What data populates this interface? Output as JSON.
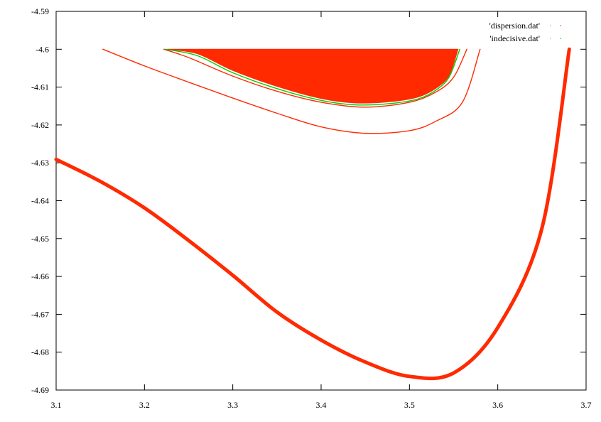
{
  "chart_data": {
    "type": "line",
    "xlim": [
      3.1,
      3.7
    ],
    "ylim": [
      -4.69,
      -4.59
    ],
    "x_ticks": [
      3.1,
      3.2,
      3.3,
      3.4,
      3.5,
      3.6,
      3.7
    ],
    "y_ticks": [
      -4.59,
      -4.6,
      -4.61,
      -4.62,
      -4.63,
      -4.64,
      -4.65,
      -4.66,
      -4.67,
      -4.68,
      -4.69
    ],
    "x_tick_labels": [
      "3.1",
      "3.2",
      "3.3",
      "3.4",
      "3.5",
      "3.6",
      "3.7"
    ],
    "y_tick_labels": [
      "-4.59",
      "-4.6",
      "-4.61",
      "-4.62",
      "-4.63",
      "-4.64",
      "-4.65",
      "-4.66",
      "-4.67",
      "-4.68",
      "-4.69"
    ],
    "grid": false,
    "legend_position": "top-right",
    "series": [
      {
        "name": "'dispersion.dat'",
        "color": "#ff2a00",
        "curves": [
          {
            "kind": "thick-line",
            "points": [
              [
                3.1,
                -4.6291
              ],
              [
                3.15,
                -4.6349
              ],
              [
                3.2,
                -4.6419
              ],
              [
                3.25,
                -4.6505
              ],
              [
                3.3,
                -4.6597
              ],
              [
                3.35,
                -4.6694
              ],
              [
                3.4,
                -4.6768
              ],
              [
                3.45,
                -4.6826
              ],
              [
                3.5,
                -4.6864
              ],
              [
                3.55,
                -4.6855
              ],
              [
                3.6,
                -4.6735
              ],
              [
                3.65,
                -4.6473
              ],
              [
                3.681,
                -4.6
              ]
            ]
          },
          {
            "kind": "thin-line",
            "points": [
              [
                3.153,
                -4.6
              ],
              [
                3.2,
                -4.6044
              ],
              [
                3.25,
                -4.6087
              ],
              [
                3.3,
                -4.6129
              ],
              [
                3.35,
                -4.6169
              ],
              [
                3.4,
                -4.6205
              ],
              [
                3.45,
                -4.6222
              ],
              [
                3.5,
                -4.6215
              ],
              [
                3.53,
                -4.619
              ],
              [
                3.56,
                -4.614
              ],
              [
                3.58,
                -4.6
              ]
            ]
          },
          {
            "kind": "thin-line",
            "points": [
              [
                3.222,
                -4.6
              ],
              [
                3.25,
                -4.6022
              ],
              [
                3.3,
                -4.6071
              ],
              [
                3.35,
                -4.6111
              ],
              [
                3.4,
                -4.614
              ],
              [
                3.45,
                -4.6153
              ],
              [
                3.5,
                -4.614
              ],
              [
                3.53,
                -4.6113
              ],
              [
                3.55,
                -4.6074
              ],
              [
                3.565,
                -4.6
              ]
            ]
          },
          {
            "kind": "filled",
            "points": [
              [
                3.226,
                -4.6
              ],
              [
                3.26,
                -4.6012
              ],
              [
                3.3,
                -4.6056
              ],
              [
                3.35,
                -4.6098
              ],
              [
                3.4,
                -4.613
              ],
              [
                3.44,
                -4.6142
              ],
              [
                3.48,
                -4.6138
              ],
              [
                3.51,
                -4.6126
              ],
              [
                3.53,
                -4.6103
              ],
              [
                3.545,
                -4.6069
              ],
              [
                3.555,
                -4.6
              ]
            ]
          }
        ]
      },
      {
        "name": "'indecisive.dat'",
        "color": "#00cc00",
        "curves": [
          {
            "kind": "thin-line",
            "points": [
              [
                3.224,
                -4.6
              ],
              [
                3.26,
                -4.6017
              ],
              [
                3.3,
                -4.6062
              ],
              [
                3.35,
                -4.6104
              ],
              [
                3.4,
                -4.6135
              ],
              [
                3.44,
                -4.6147
              ],
              [
                3.48,
                -4.6143
              ],
              [
                3.51,
                -4.6131
              ],
              [
                3.53,
                -4.6108
              ],
              [
                3.545,
                -4.6073
              ],
              [
                3.557,
                -4.6
              ]
            ]
          }
        ]
      }
    ]
  }
}
